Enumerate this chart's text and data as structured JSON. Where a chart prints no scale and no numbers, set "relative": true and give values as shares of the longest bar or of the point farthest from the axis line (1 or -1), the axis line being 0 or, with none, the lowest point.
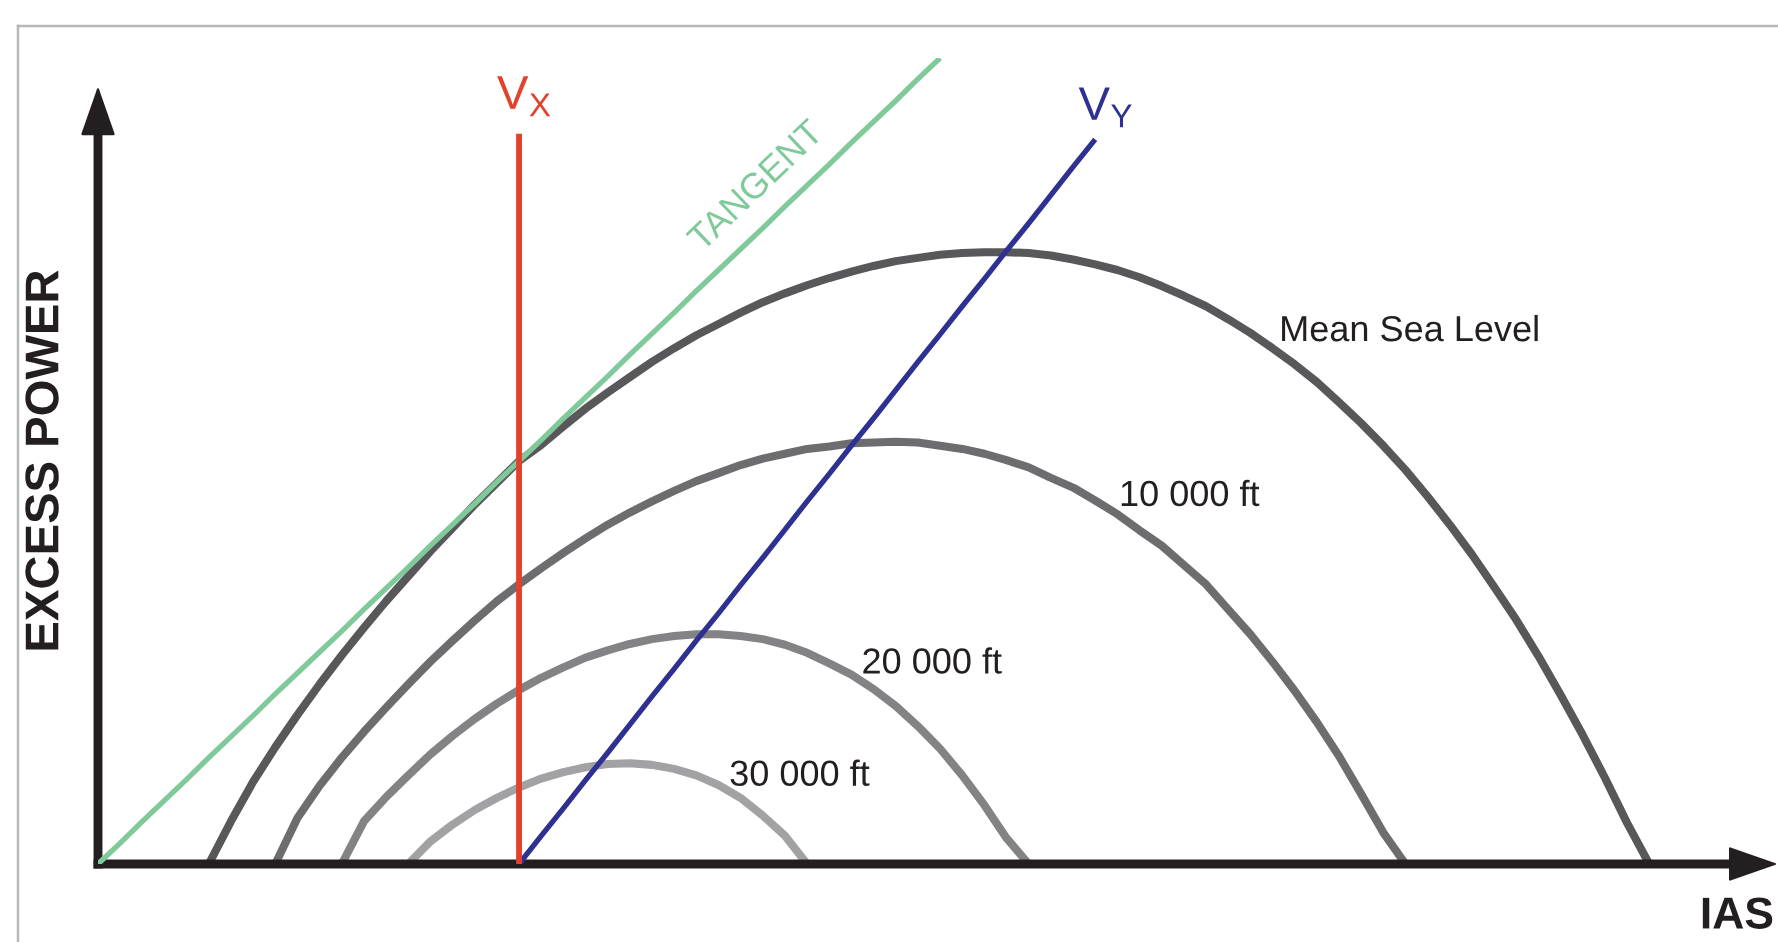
{
  "chart_data": {
    "type": "line",
    "relative": true,
    "xlabel": "IAS",
    "ylabel": "EXCESS POWER",
    "categories": [
      null,
      null,
      null,
      null,
      null,
      null,
      null,
      null,
      null,
      null,
      null,
      null,
      null,
      null,
      null,
      null,
      null,
      null,
      null,
      null,
      null,
      null,
      null,
      null,
      null,
      null,
      null,
      null,
      null,
      null,
      null,
      null,
      null,
      null,
      null,
      null,
      null,
      null,
      null,
      null,
      null,
      null,
      null,
      null,
      null,
      null,
      null,
      null,
      null,
      null,
      null,
      null,
      null,
      null,
      null,
      null,
      null,
      null,
      null,
      null,
      null,
      null,
      null,
      null,
      null,
      null,
      null,
      null,
      null,
      null,
      null,
      null,
      null,
      null,
      null,
      null
    ],
    "series": [
      {
        "name": "Mean Sea Level",
        "color": "#58585a",
        "values": [
          null,
          null,
          null,
          null,
          null,
          0,
          0.053,
          0.102,
          0.145,
          0.185,
          0.223,
          0.259,
          0.293,
          0.326,
          0.357,
          0.388,
          0.417,
          0.446,
          0.473,
          0.5,
          0.52,
          0.543,
          0.565,
          0.585,
          0.604,
          0.623,
          0.64,
          0.656,
          0.67,
          0.684,
          0.697,
          0.708,
          0.718,
          0.727,
          0.735,
          0.742,
          0.748,
          0.752,
          0.756,
          0.758,
          0.759,
          0.759,
          0.758,
          0.755,
          0.75,
          0.744,
          0.737,
          0.728,
          0.717,
          0.705,
          0.692,
          0.676,
          0.659,
          0.64,
          0.62,
          0.598,
          0.573,
          0.547,
          0.519,
          0.489,
          0.456,
          0.421,
          0.384,
          0.344,
          0.303,
          0.258,
          0.21,
          0.16,
          0.107,
          0.051,
          0,
          null,
          null,
          null,
          null,
          null
        ]
      },
      {
        "name": "10 000 ft",
        "color": "#6d6d6f",
        "values": [
          null,
          null,
          null,
          null,
          null,
          null,
          null,
          null,
          0,
          0.057,
          0.097,
          0.132,
          0.164,
          0.194,
          0.223,
          0.251,
          0.277,
          0.302,
          0.326,
          0.347,
          0.367,
          0.386,
          0.404,
          0.421,
          0.436,
          0.45,
          0.463,
          0.475,
          0.485,
          0.495,
          0.503,
          0.509,
          0.515,
          0.518,
          0.522,
          0.523,
          0.524,
          0.523,
          0.519,
          0.515,
          0.509,
          0.501,
          0.492,
          0.479,
          0.467,
          0.451,
          0.434,
          0.414,
          0.395,
          0.371,
          0.347,
          0.316,
          0.285,
          0.251,
          0.215,
          0.176,
          0.134,
          0.087,
          0.039,
          0,
          null,
          null,
          null,
          null,
          null,
          null,
          null,
          null,
          null,
          null,
          null,
          null,
          null,
          null,
          null,
          null
        ]
      },
      {
        "name": "20 000 ft",
        "color": "#838385",
        "values": [
          null,
          null,
          null,
          null,
          null,
          null,
          null,
          null,
          null,
          null,
          null,
          0,
          0.053,
          0.083,
          0.11,
          0.136,
          0.159,
          0.18,
          0.199,
          0.216,
          0.231,
          0.244,
          0.256,
          0.265,
          0.273,
          0.279,
          0.283,
          0.285,
          0.285,
          0.283,
          0.279,
          0.272,
          0.262,
          0.249,
          0.235,
          0.217,
          0.196,
          0.171,
          0.143,
          0.11,
          0.073,
          0.032,
          0,
          null,
          null,
          null,
          null,
          null,
          null,
          null,
          null,
          null,
          null,
          null,
          null,
          null,
          null,
          null,
          null,
          null,
          null,
          null,
          null,
          null,
          null,
          null,
          null,
          null,
          null,
          null,
          null,
          null,
          null,
          null,
          null,
          null
        ]
      },
      {
        "name": "30 000 ft",
        "color": "#a2a2a4",
        "values": [
          null,
          null,
          null,
          null,
          null,
          null,
          null,
          null,
          null,
          null,
          null,
          null,
          null,
          null,
          0,
          0.028,
          0.049,
          0.067,
          0.082,
          0.095,
          0.106,
          0.114,
          0.12,
          0.124,
          0.125,
          0.123,
          0.118,
          0.11,
          0.098,
          0.082,
          0.06,
          0.035,
          0,
          null,
          null,
          null,
          null,
          null,
          null,
          null,
          null,
          null,
          null,
          null,
          null,
          null,
          null,
          null,
          null,
          null,
          null,
          null,
          null,
          null,
          null,
          null,
          null,
          null,
          null,
          null,
          null,
          null,
          null,
          null,
          null,
          null,
          null,
          null,
          null,
          null,
          null,
          null,
          null,
          null,
          null,
          null
        ]
      },
      {
        "name": "TANGENT",
        "color": "#80c99a",
        "values": [
          0,
          0.026,
          0.053,
          0.079,
          0.105,
          0.132,
          0.158,
          0.184,
          0.211,
          0.237,
          0.263,
          0.289,
          0.316,
          0.342,
          0.368,
          0.395,
          0.421,
          0.447,
          0.474,
          0.5,
          0.526,
          0.553,
          0.579,
          0.605,
          0.632,
          0.658,
          0.684,
          0.711,
          0.737,
          0.763,
          0.789,
          0.816,
          0.842,
          0.868,
          0.895,
          0.921,
          0.947,
          0.974,
          1,
          null,
          null,
          null,
          null,
          null,
          null,
          null,
          null,
          null,
          null,
          null,
          null,
          null,
          null,
          null,
          null,
          null,
          null,
          null,
          null,
          null,
          null,
          null,
          null,
          null,
          null,
          null,
          null,
          null,
          null,
          null,
          null,
          null,
          null,
          null,
          null,
          null
        ]
      },
      {
        "name": "V$_{Y}$",
        "color": "#2e3192",
        "values": [
          null,
          null,
          null,
          null,
          null,
          null,
          null,
          null,
          null,
          null,
          null,
          null,
          null,
          null,
          null,
          null,
          null,
          null,
          null,
          0,
          0.035,
          0.069,
          0.104,
          0.138,
          0.173,
          0.208,
          0.242,
          0.277,
          0.311,
          0.346,
          0.38,
          0.415,
          0.45,
          0.484,
          0.519,
          0.553,
          0.588,
          0.623,
          0.657,
          0.692,
          0.726,
          0.761,
          0.795,
          0.83,
          0.865,
          0.899,
          null,
          null,
          null,
          null,
          null,
          null,
          null,
          null,
          null,
          null,
          null,
          null,
          null,
          null,
          null,
          null,
          null,
          null,
          null,
          null,
          null,
          null,
          null,
          null,
          null,
          null,
          null,
          null,
          null,
          null
        ]
      }
    ],
    "annotations": [
      "V$_{X}$"
    ]
  }
}
